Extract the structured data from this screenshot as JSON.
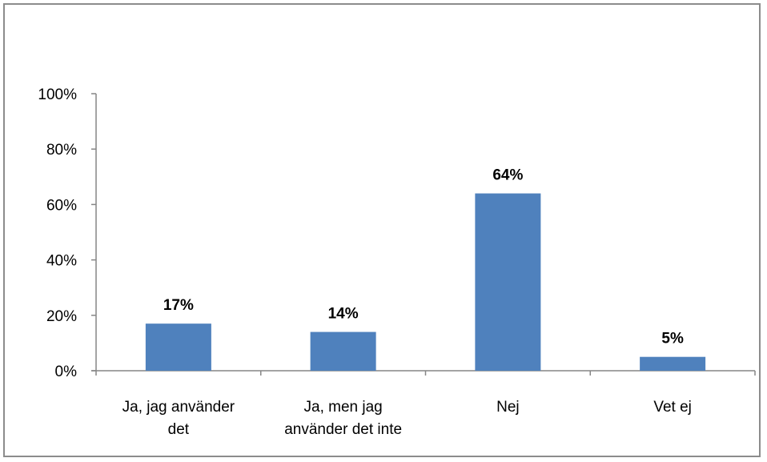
{
  "chart_data": {
    "type": "bar",
    "title": "",
    "xlabel": "",
    "ylabel": "",
    "categories": [
      [
        "Ja, jag använder",
        "det"
      ],
      [
        "Ja, men jag",
        "använder det inte"
      ],
      [
        "Nej"
      ],
      [
        "Vet ej"
      ]
    ],
    "values": [
      17,
      14,
      64,
      5
    ],
    "data_labels": [
      "17%",
      "14%",
      "64%",
      "5%"
    ],
    "ylim": [
      0,
      100
    ],
    "yticks": [
      0,
      20,
      40,
      60,
      80,
      100
    ],
    "ytick_labels": [
      "0%",
      "20%",
      "40%",
      "60%",
      "80%",
      "100%"
    ],
    "grid": false,
    "legend": "none",
    "colors": {
      "bar": "#4f81bd",
      "axis": "#868686",
      "frame": "#8c8c8c"
    }
  }
}
